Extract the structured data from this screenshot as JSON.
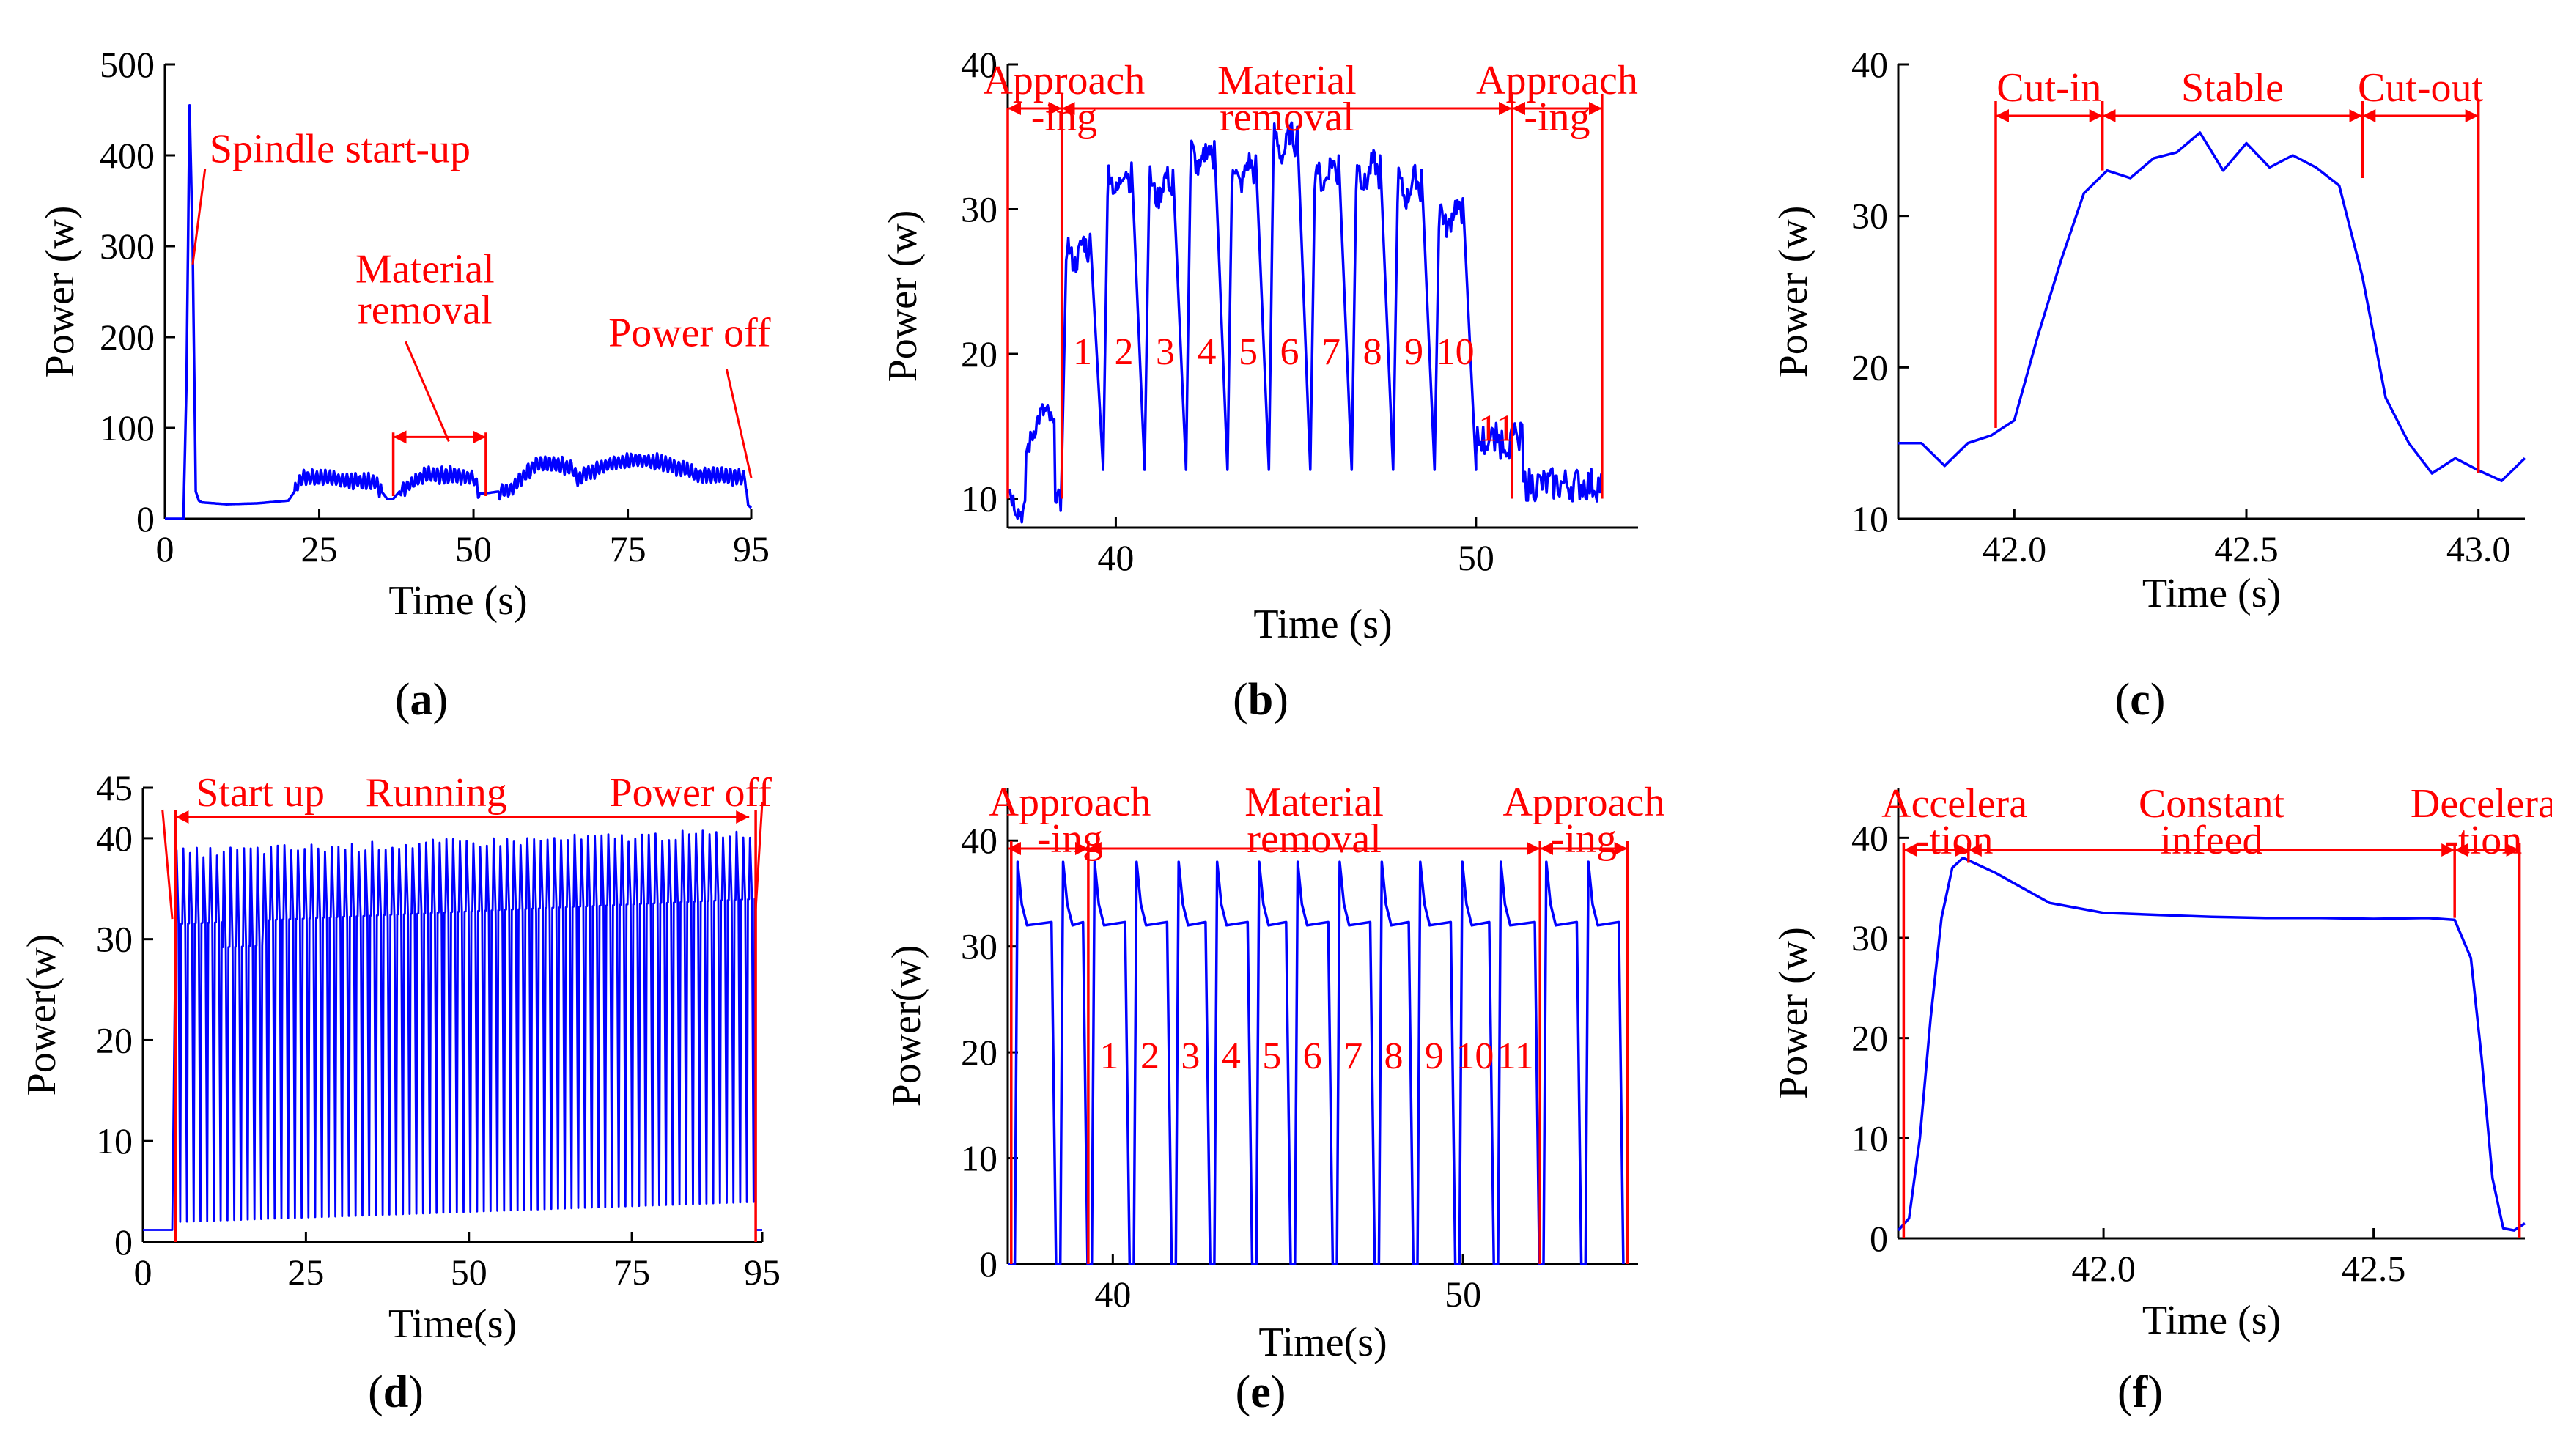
{
  "colors": {
    "series": "#0000ff",
    "annotation": "#ff0000",
    "axis": "#000000"
  },
  "chart_data": [
    {
      "panel": "(a)",
      "type": "line",
      "xlabel": "Time (s)",
      "ylabel": "Power (w)",
      "xlim": [
        0,
        95
      ],
      "ylim": [
        0,
        500
      ],
      "xticks": [
        0,
        25,
        50,
        75,
        95
      ],
      "yticks": [
        0,
        100,
        200,
        300,
        400,
        500
      ],
      "series": [
        {
          "name": "power",
          "x": [
            0,
            2,
            3,
            3.5,
            4,
            4.5,
            5,
            5.5,
            6,
            10,
            15,
            20,
            21,
            22,
            26,
            30,
            34,
            36,
            37,
            38,
            42,
            46,
            50,
            51,
            52,
            56,
            60,
            64,
            66,
            67,
            68,
            72,
            76,
            80,
            84,
            86,
            87,
            88,
            90,
            93,
            94,
            94.5,
            95
          ],
          "y": [
            0,
            0,
            0,
            150,
            455,
            300,
            30,
            20,
            18,
            16,
            17,
            20,
            30,
            45,
            45,
            42,
            40,
            22,
            22,
            30,
            48,
            48,
            45,
            28,
            28,
            32,
            60,
            60,
            55,
            42,
            50,
            60,
            65,
            62,
            55,
            48,
            48,
            48,
            47,
            45,
            46,
            15,
            12
          ]
        }
      ],
      "annotations": [
        {
          "text": "Spindle start-up",
          "x": 7,
          "y": 410,
          "target": [
            4.5,
            280
          ]
        },
        {
          "text": "Material",
          "x": 40,
          "y": 260
        },
        {
          "text": "removal",
          "x": 40,
          "y": 215,
          "target": [
            46,
            90
          ]
        },
        {
          "text": "Power off",
          "x": 85,
          "y": 190,
          "target": [
            95,
            45
          ]
        }
      ],
      "spans": [
        {
          "x0": 37,
          "x1": 52,
          "y": 90,
          "vlines": true
        }
      ]
    },
    {
      "panel": "(b)",
      "type": "line",
      "xlabel": "Time (s)",
      "ylabel": "Power (w)",
      "xlim": [
        37,
        54.5
      ],
      "ylim": [
        8,
        40
      ],
      "xticks": [
        40,
        50
      ],
      "yticks": [
        10,
        20,
        30,
        40
      ],
      "series": [
        {
          "name": "power",
          "peaks": [
            28.5,
            33.5,
            33,
            35,
            34,
            36,
            34,
            34,
            33,
            31
          ],
          "first_rise": 38.5,
          "period": 1.15,
          "idle_level": 10.5
        }
      ],
      "phases": [
        {
          "label": "Approach",
          "label2": "-ing",
          "x0": 37,
          "x1": 38.5
        },
        {
          "label": "Material",
          "label2": "removal",
          "x0": 38.5,
          "x1": 51
        },
        {
          "label": "Approach",
          "label2": "-ing",
          "x0": 51,
          "x1": 53.5
        }
      ],
      "pass_labels": [
        "1",
        "2",
        "3",
        "4",
        "5",
        "6",
        "7",
        "8",
        "9",
        "10",
        "11"
      ]
    },
    {
      "panel": "(c)",
      "type": "line",
      "xlabel": "Time (s)",
      "ylabel": "Power (w)",
      "xlim": [
        41.75,
        43.1
      ],
      "ylim": [
        10,
        40
      ],
      "xticks": [
        "42.0",
        "42.5",
        "43.0"
      ],
      "yticks": [
        10,
        20,
        30,
        40
      ],
      "series": [
        {
          "name": "power",
          "x": [
            41.75,
            41.8,
            41.85,
            41.9,
            41.95,
            42.0,
            42.05,
            42.1,
            42.15,
            42.2,
            42.25,
            42.3,
            42.35,
            42.4,
            42.45,
            42.5,
            42.55,
            42.6,
            42.65,
            42.7,
            42.75,
            42.8,
            42.85,
            42.9,
            42.95,
            43.0,
            43.05,
            43.1
          ],
          "y": [
            15,
            15,
            13.5,
            15,
            15.5,
            16.5,
            22,
            27,
            31.5,
            33,
            32.5,
            33.8,
            34.2,
            35.5,
            33,
            34.8,
            33.2,
            34,
            33.2,
            32,
            26,
            18,
            15,
            13,
            14,
            13.2,
            12.5,
            14
          ]
        }
      ],
      "phases": [
        {
          "label": "Cut-in",
          "x0": 41.96,
          "x1": 42.19
        },
        {
          "label": "Stable",
          "x0": 42.19,
          "x1": 42.75
        },
        {
          "label": "Cut-out",
          "x0": 42.75,
          "x1": 43.0
        }
      ]
    },
    {
      "panel": "(d)",
      "type": "line",
      "xlabel": "Time(s)",
      "ylabel": "Power(w)",
      "xlim": [
        0,
        95
      ],
      "ylim": [
        0,
        45
      ],
      "xticks": [
        0,
        25,
        50,
        75,
        95
      ],
      "yticks": [
        0,
        10,
        20,
        30,
        40,
        45
      ],
      "series": [
        {
          "name": "power",
          "start": 5,
          "end": 94,
          "base": 31.5,
          "peak": 38.5,
          "trough": 2,
          "oscillations": 86
        }
      ],
      "phases": [
        {
          "label": "Start up",
          "x0": 0,
          "x1": 5
        },
        {
          "label": "Running",
          "x0": 5,
          "x1": 93
        },
        {
          "label": "Power off",
          "x0": 93,
          "x1": 95
        }
      ]
    },
    {
      "panel": "(e)",
      "type": "line",
      "xlabel": "Time(s)",
      "ylabel": "Power(w)",
      "xlim": [
        37,
        55
      ],
      "ylim": [
        0,
        45
      ],
      "xticks": [
        40,
        50
      ],
      "yticks": [
        0,
        10,
        20,
        30,
        40
      ],
      "series": [
        {
          "name": "power",
          "spike_times": [
            37.2,
            38.5,
            39.4,
            40.6,
            41.8,
            42.9,
            44.1,
            45.2,
            46.4,
            47.6,
            48.7,
            49.9,
            51.0,
            52.3,
            53.5
          ],
          "peak": 38,
          "plateau": 32,
          "trough": 0
        }
      ],
      "phases": [
        {
          "label": "Approach",
          "label2": "-ing",
          "x0": 37,
          "x1": 39.3
        },
        {
          "label": "Material",
          "label2": "removal",
          "x0": 39.3,
          "x1": 52.2
        },
        {
          "label": "Approach",
          "label2": "-ing",
          "x0": 52.2,
          "x1": 54.7
        }
      ],
      "pass_labels": [
        "1",
        "2",
        "3",
        "4",
        "5",
        "6",
        "7",
        "8",
        "9",
        "10",
        "11"
      ]
    },
    {
      "panel": "(f)",
      "type": "line",
      "xlabel": "Time (s)",
      "ylabel": "Power (w)",
      "xlim": [
        41.62,
        42.78
      ],
      "ylim": [
        0,
        45
      ],
      "xticks": [
        "42.0",
        "42.5"
      ],
      "yticks": [
        0,
        10,
        20,
        30,
        40
      ],
      "series": [
        {
          "name": "power",
          "x": [
            41.62,
            41.64,
            41.66,
            41.68,
            41.7,
            41.72,
            41.74,
            41.76,
            41.8,
            41.85,
            41.9,
            41.95,
            42.0,
            42.1,
            42.2,
            42.3,
            42.4,
            42.5,
            42.6,
            42.65,
            42.68,
            42.7,
            42.72,
            42.74,
            42.76,
            42.78
          ],
          "y": [
            0.8,
            2,
            10,
            22,
            32,
            37,
            38,
            37.5,
            36.5,
            35,
            33.5,
            33,
            32.5,
            32.3,
            32.1,
            32,
            32,
            31.9,
            32,
            31.8,
            28,
            18,
            6,
            1,
            0.8,
            1.5
          ]
        }
      ],
      "phases": [
        {
          "label": "Accelera",
          "label2": "-tion",
          "x0": 41.63,
          "x1": 41.75
        },
        {
          "label": "Constant",
          "label2": "infeed",
          "x0": 41.75,
          "x1": 42.65
        },
        {
          "label": "Decelera",
          "label2": "-tion",
          "x0": 42.65,
          "x1": 42.77
        }
      ]
    }
  ]
}
